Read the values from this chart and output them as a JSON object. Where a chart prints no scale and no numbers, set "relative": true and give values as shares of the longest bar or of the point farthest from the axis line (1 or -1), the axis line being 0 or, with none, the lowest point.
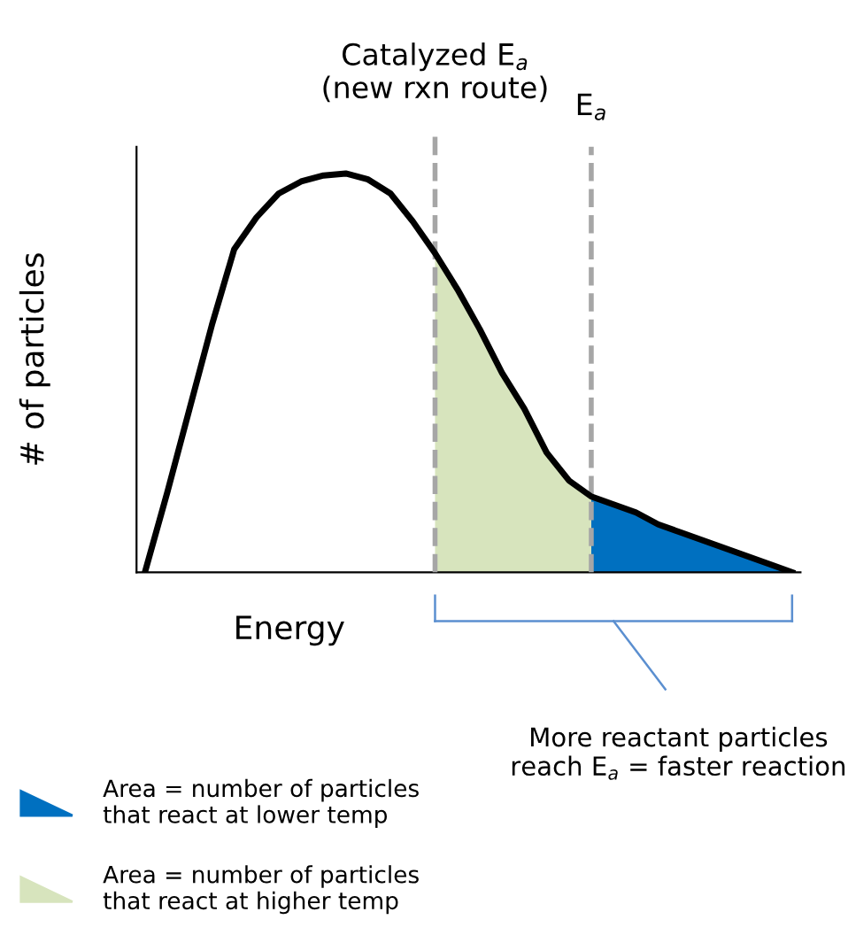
{
  "chart_data": {
    "type": "line",
    "relative": true,
    "xlabel": "Energy",
    "ylabel": "# of particles",
    "categories": [
      null,
      null,
      null,
      null,
      null,
      null,
      null,
      null,
      null,
      null,
      null,
      null,
      null,
      null,
      null,
      null,
      null,
      null,
      null,
      null,
      null,
      null,
      null,
      null,
      null,
      null,
      null,
      null,
      null,
      null
    ],
    "series": [
      {
        "color": "#000000",
        "values": [
          0,
          0.2,
          0.41,
          0.62,
          0.81,
          0.89,
          0.95,
          0.98,
          0.995,
          1.0,
          0.985,
          0.95,
          0.88,
          0.8,
          0.71,
          0.61,
          0.5,
          0.41,
          0.3,
          0.23,
          0.19,
          0.17,
          0.15,
          0.12,
          0.1,
          0.08,
          0.06,
          0.04,
          0.02,
          0
        ]
      },
      {
        "type": "area",
        "name": "Area = number of particles\nthat react at lower temp",
        "color": "#0070c0",
        "values": [
          null,
          null,
          null,
          null,
          null,
          null,
          null,
          null,
          null,
          null,
          null,
          null,
          null,
          null,
          null,
          null,
          null,
          null,
          null,
          null,
          0.19,
          0.17,
          0.15,
          0.12,
          0.1,
          0.08,
          0.06,
          0.04,
          0.02,
          0
        ]
      },
      {
        "type": "area",
        "name": "Area = number of particles\nthat react at higher temp",
        "color": "#d7e4bd",
        "values": [
          null,
          null,
          null,
          null,
          null,
          null,
          null,
          null,
          null,
          null,
          null,
          null,
          null,
          0.8,
          0.71,
          0.61,
          0.5,
          0.41,
          0.3,
          0.23,
          0.19,
          null,
          null,
          null,
          null,
          null,
          null,
          null,
          null,
          null
        ]
      }
    ],
    "annotations": [
      "Catalyzed E$_{a}$\n(new rxn route)",
      "E$_{a}$",
      "More reactant particles\nreach E$_{a}$ = faster reaction"
    ],
    "legend": "bottom left",
    "marker": "none",
    "line_style": "solid"
  }
}
